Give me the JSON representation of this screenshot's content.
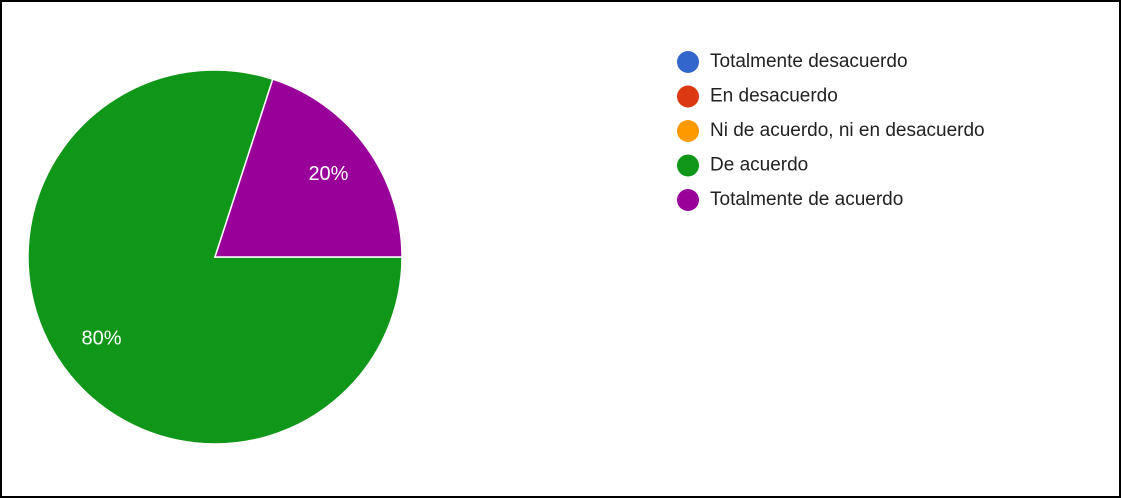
{
  "chart_data": {
    "type": "pie",
    "categories": [
      "Totalmente desacuerdo",
      "En desacuerdo",
      "Ni de acuerdo, ni en desacuerdo",
      "De acuerdo",
      "Totalmente de acuerdo"
    ],
    "values": [
      0,
      0,
      0,
      80,
      20
    ],
    "value_labels": [
      null,
      null,
      null,
      "80%",
      "20%"
    ],
    "colors": [
      "#3366cc",
      "#dc3912",
      "#ff9900",
      "#109618",
      "#990099"
    ],
    "legend": "right"
  }
}
